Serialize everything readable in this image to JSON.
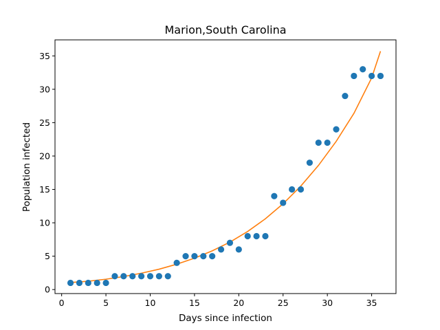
{
  "chart_data": {
    "type": "scatter",
    "title": "Marion,South Carolina",
    "xlabel": "Days since infection",
    "ylabel": "Population infected",
    "xlim": [
      -0.75,
      37.75
    ],
    "ylim": [
      -0.6,
      37.4
    ],
    "xticks": [
      0,
      5,
      10,
      15,
      20,
      25,
      30,
      35
    ],
    "yticks": [
      0,
      5,
      10,
      15,
      20,
      25,
      30,
      35
    ],
    "grid": false,
    "series": [
      {
        "kind": "scatter",
        "color": "#1f77b4",
        "points": [
          [
            1,
            1
          ],
          [
            2,
            1
          ],
          [
            3,
            1
          ],
          [
            4,
            1
          ],
          [
            5,
            1
          ],
          [
            6,
            2
          ],
          [
            7,
            2
          ],
          [
            8,
            2
          ],
          [
            9,
            2
          ],
          [
            10,
            2
          ],
          [
            11,
            2
          ],
          [
            12,
            2
          ],
          [
            13,
            4
          ],
          [
            14,
            5
          ],
          [
            15,
            5
          ],
          [
            16,
            5
          ],
          [
            17,
            5
          ],
          [
            18,
            6
          ],
          [
            19,
            7
          ],
          [
            20,
            6
          ],
          [
            21,
            8
          ],
          [
            22,
            8
          ],
          [
            23,
            8
          ],
          [
            24,
            14
          ],
          [
            25,
            13
          ],
          [
            26,
            15
          ],
          [
            27,
            15
          ],
          [
            28,
            19
          ],
          [
            29,
            22
          ],
          [
            30,
            22
          ],
          [
            31,
            24
          ],
          [
            32,
            29
          ],
          [
            33,
            32
          ],
          [
            34,
            33
          ],
          [
            35,
            32
          ],
          [
            36,
            32
          ]
        ]
      },
      {
        "kind": "line",
        "color": "#ff7f0e",
        "points": [
          [
            1,
            1.05
          ],
          [
            3,
            1.25
          ],
          [
            5,
            1.55
          ],
          [
            7,
            1.95
          ],
          [
            9,
            2.45
          ],
          [
            11,
            3.05
          ],
          [
            13,
            3.8
          ],
          [
            15,
            4.7
          ],
          [
            17,
            5.8
          ],
          [
            19,
            7.1
          ],
          [
            21,
            8.7
          ],
          [
            23,
            10.6
          ],
          [
            25,
            12.85
          ],
          [
            27,
            15.5
          ],
          [
            29,
            18.6
          ],
          [
            31,
            22.2
          ],
          [
            33,
            26.4
          ],
          [
            35,
            31.7
          ],
          [
            36,
            35.7
          ]
        ]
      }
    ]
  }
}
